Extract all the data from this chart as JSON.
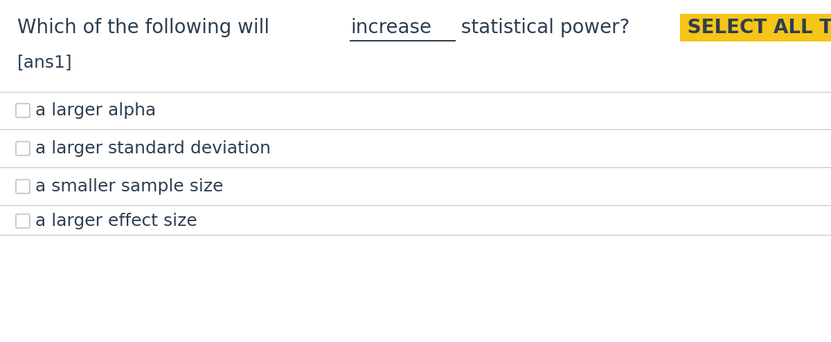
{
  "title_normal": "Which of the following will ",
  "title_underline": "increase",
  "title_after_underline": " statistical power?",
  "title_highlight": " SELECT ALL THAT APPLY.",
  "highlight_color": "#F5C518",
  "ans_label": "[ans1]",
  "options": [
    "a larger alpha",
    "a larger standard deviation",
    "a smaller sample size",
    "a larger effect size"
  ],
  "text_color": "#2d3e50",
  "bg_color": "#ffffff",
  "line_color": "#cccccc",
  "checkbox_color": "#cccccc",
  "title_fontsize": 20,
  "ans_fontsize": 18,
  "option_fontsize": 18,
  "highlight_text_color": "#2d3e50"
}
